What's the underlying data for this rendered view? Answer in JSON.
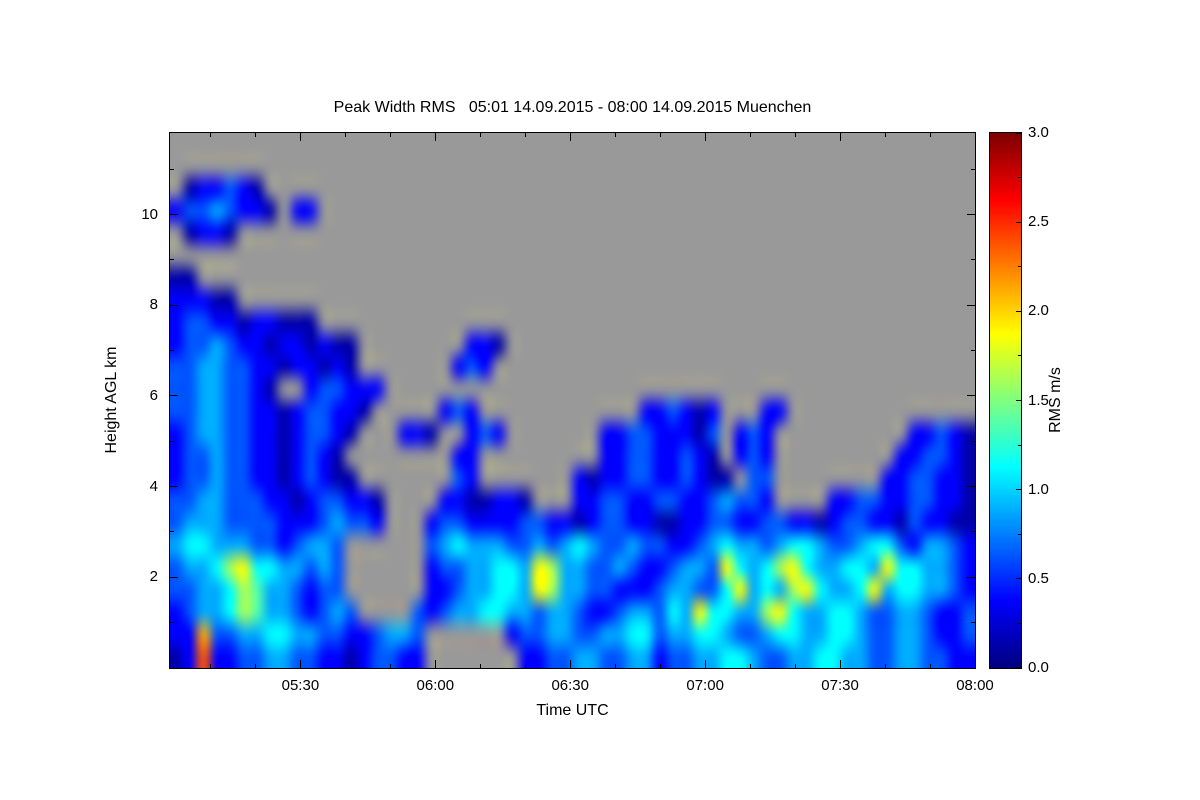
{
  "chart_data": {
    "type": "heatmap",
    "title": "Peak Width RMS   05:01 14.09.2015 - 08:00 14.09.2015 Muenchen",
    "xlabel": "Time UTC",
    "ylabel": "Height AGL km",
    "x_range_hours": [
      5.0167,
      8.0
    ],
    "y_range_km": [
      0,
      11.8
    ],
    "x_ticks": [
      {
        "hour": 5.5,
        "label": "05:30"
      },
      {
        "hour": 6.0,
        "label": "06:00"
      },
      {
        "hour": 6.5,
        "label": "06:30"
      },
      {
        "hour": 7.0,
        "label": "07:00"
      },
      {
        "hour": 7.5,
        "label": "07:30"
      },
      {
        "hour": 8.0,
        "label": "08:00"
      }
    ],
    "x_minor_step_hours": 0.166667,
    "y_ticks": [
      {
        "km": 2,
        "label": "2"
      },
      {
        "km": 4,
        "label": "4"
      },
      {
        "km": 6,
        "label": "6"
      },
      {
        "km": 8,
        "label": "8"
      },
      {
        "km": 10,
        "label": "10"
      }
    ],
    "y_minor_step_km": 1,
    "colorbar": {
      "label": "RMS m/s",
      "min": 0,
      "max": 3,
      "ticks": [
        "0.0",
        "0.5",
        "1.0",
        "1.5",
        "2.0",
        "2.5",
        "3.0"
      ],
      "tick_values": [
        0,
        0.5,
        1.0,
        1.5,
        2.0,
        2.5,
        3.0
      ],
      "minor_step": 0.25
    },
    "colors": {
      "background": "#ffffff",
      "nodata": "#999999",
      "axis": "#000000",
      "text": "#000000"
    },
    "palette": "jet",
    "grid": {
      "cols": 60,
      "rows": 24,
      "no_data_char": ".",
      "level_value_base": 0.125,
      "level_value_step": 0.25,
      "rows_top_to_bottom": [
        "............................................................",
        "............................................................",
        ".011210.....................................................",
        "12232110.11.................................................",
        ".0110.......................................................",
        "............................................................",
        "00..........................................................",
        "11100.......................................................",
        "12211011000.................................................",
        "12232110110100........110...................................",
        "22332211011010.......121....................................",
        "22332210..122111............................................",
        "223322110122110.....121............112101...11..............",
        "12332211012210...110..121.......112211102.121..........11210",
        "1223221101210........11.........112211210.121.........112210",
        "12232211012100.......21.......101122112100.22........1122110",
        "2233222110122110....1100110...112211221123221....11221122110",
        "2333222211123221...12211112211012211001122112211012211021100",
        "3443332212332......23433322323432232211234332344322344213321",
        "2334674433232......12233443763322321123327434674334437443321",
        "2233465332122......11233443763322111233224734367433473443321",
        "12334653321232....212334433233211233243744336743344322332112",
        "1182233443322112332......12233223344233443223443344322332112",
        "0191122332211012211.......1122332233122334432233443322332211"
      ]
    }
  }
}
